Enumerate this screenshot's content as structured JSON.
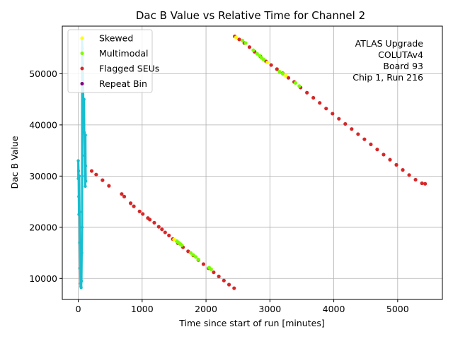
{
  "chart_data": {
    "type": "scatter",
    "title": "Dac B Value vs Relative Time for Channel 2",
    "xlabel": "Time since start of run [minutes]",
    "ylabel": "Dac B Value",
    "xlim": [
      -250,
      5700
    ],
    "ylim": [
      5900,
      59300
    ],
    "xticks": [
      0,
      1000,
      2000,
      3000,
      4000,
      5000
    ],
    "yticks": [
      10000,
      20000,
      30000,
      40000,
      50000
    ],
    "grid": true,
    "legend_position": "upper-left",
    "legend": [
      {
        "label": "Skewed",
        "color": "#ffff00"
      },
      {
        "label": "Multimodal",
        "color": "#7cfc00"
      },
      {
        "label": "Flagged SEUs",
        "color": "#d62728"
      },
      {
        "label": "Repeat Bin",
        "color": "#800080"
      }
    ],
    "annotation": [
      "ATLAS Upgrade",
      "COLUTAv4",
      "Board 93",
      "Chip 1, Run 216"
    ],
    "colors": {
      "base": "#17becf",
      "flagged": "#d62728",
      "multimodal": "#7cfc00",
      "skewed": "#ffff00",
      "repeat": "#800080"
    },
    "series": [
      {
        "name": "Dac B Value",
        "points": [
          [
            0,
            29500
          ],
          [
            0,
            33000
          ],
          [
            5,
            31000
          ],
          [
            8,
            26000
          ],
          [
            10,
            22500
          ],
          [
            15,
            30000
          ],
          [
            20,
            23000
          ],
          [
            25,
            17000
          ],
          [
            30,
            12000
          ],
          [
            35,
            9000
          ],
          [
            40,
            8500
          ],
          [
            45,
            8200
          ],
          [
            50,
            9500
          ],
          [
            55,
            15000
          ],
          [
            60,
            20000
          ],
          [
            60,
            57000
          ],
          [
            65,
            55000
          ],
          [
            70,
            52000
          ],
          [
            75,
            48000
          ],
          [
            80,
            44000
          ],
          [
            85,
            41000
          ],
          [
            90,
            45000
          ],
          [
            95,
            38500
          ],
          [
            100,
            34000
          ],
          [
            105,
            30000
          ],
          [
            110,
            28000
          ],
          [
            112,
            38000
          ],
          [
            115,
            32000
          ],
          [
            118,
            29000
          ]
        ]
      },
      {
        "name": "Flagged SEUs",
        "points": [
          [
            210,
            31000
          ],
          [
            280,
            30300
          ],
          [
            380,
            29200
          ],
          [
            480,
            28100
          ],
          [
            680,
            26500
          ],
          [
            720,
            26000
          ],
          [
            820,
            24700
          ],
          [
            870,
            24100
          ],
          [
            960,
            23100
          ],
          [
            1010,
            22600
          ],
          [
            1090,
            21800
          ],
          [
            1120,
            21500
          ],
          [
            1190,
            20900
          ],
          [
            1260,
            20100
          ],
          [
            1310,
            19600
          ],
          [
            1360,
            19000
          ],
          [
            1420,
            18400
          ],
          [
            1480,
            17700
          ],
          [
            1560,
            16900
          ],
          [
            1640,
            16100
          ],
          [
            1720,
            15300
          ],
          [
            1800,
            14500
          ],
          [
            1880,
            13600
          ],
          [
            1960,
            12800
          ],
          [
            2040,
            12000
          ],
          [
            2120,
            11200
          ],
          [
            2200,
            10400
          ],
          [
            2280,
            9600
          ],
          [
            2360,
            8800
          ],
          [
            2440,
            8100
          ],
          [
            2450,
            57300
          ],
          [
            2520,
            56700
          ],
          [
            2600,
            56000
          ],
          [
            2680,
            55200
          ],
          [
            2760,
            54300
          ],
          [
            2850,
            53400
          ],
          [
            2940,
            52400
          ],
          [
            3020,
            51700
          ],
          [
            3110,
            50900
          ],
          [
            3200,
            50100
          ],
          [
            3290,
            49200
          ],
          [
            3380,
            48400
          ],
          [
            3480,
            47300
          ],
          [
            3580,
            46300
          ],
          [
            3680,
            45300
          ],
          [
            3780,
            44300
          ],
          [
            3880,
            43200
          ],
          [
            3980,
            42200
          ],
          [
            4080,
            41200
          ],
          [
            4180,
            40200
          ],
          [
            4280,
            39200
          ],
          [
            4380,
            38200
          ],
          [
            4480,
            37200
          ],
          [
            4580,
            36200
          ],
          [
            4680,
            35200
          ],
          [
            4780,
            34200
          ],
          [
            4880,
            33200
          ],
          [
            4980,
            32200
          ],
          [
            5080,
            31200
          ],
          [
            5180,
            30200
          ],
          [
            5280,
            29300
          ],
          [
            5380,
            28600
          ],
          [
            5430,
            28500
          ]
        ]
      },
      {
        "name": "Multimodal",
        "points": [
          [
            1540,
            17300
          ],
          [
            1560,
            17100
          ],
          [
            1580,
            16900
          ],
          [
            1600,
            16700
          ],
          [
            1620,
            16500
          ],
          [
            1760,
            15000
          ],
          [
            1800,
            14600
          ],
          [
            1840,
            14200
          ],
          [
            1880,
            13700
          ],
          [
            2050,
            12100
          ],
          [
            2080,
            11800
          ],
          [
            2570,
            56500
          ],
          [
            2620,
            56000
          ],
          [
            2740,
            54600
          ],
          [
            2800,
            53900
          ],
          [
            2840,
            53500
          ],
          [
            2870,
            53100
          ],
          [
            2900,
            52800
          ],
          [
            3150,
            50400
          ],
          [
            3200,
            50000
          ],
          [
            3400,
            48200
          ],
          [
            3460,
            47600
          ]
        ]
      },
      {
        "name": "Skewed",
        "points": [
          [
            2470,
            57100
          ],
          [
            1500,
            17600
          ],
          [
            3250,
            49600
          ],
          [
            2960,
            52200
          ]
        ]
      }
    ]
  }
}
